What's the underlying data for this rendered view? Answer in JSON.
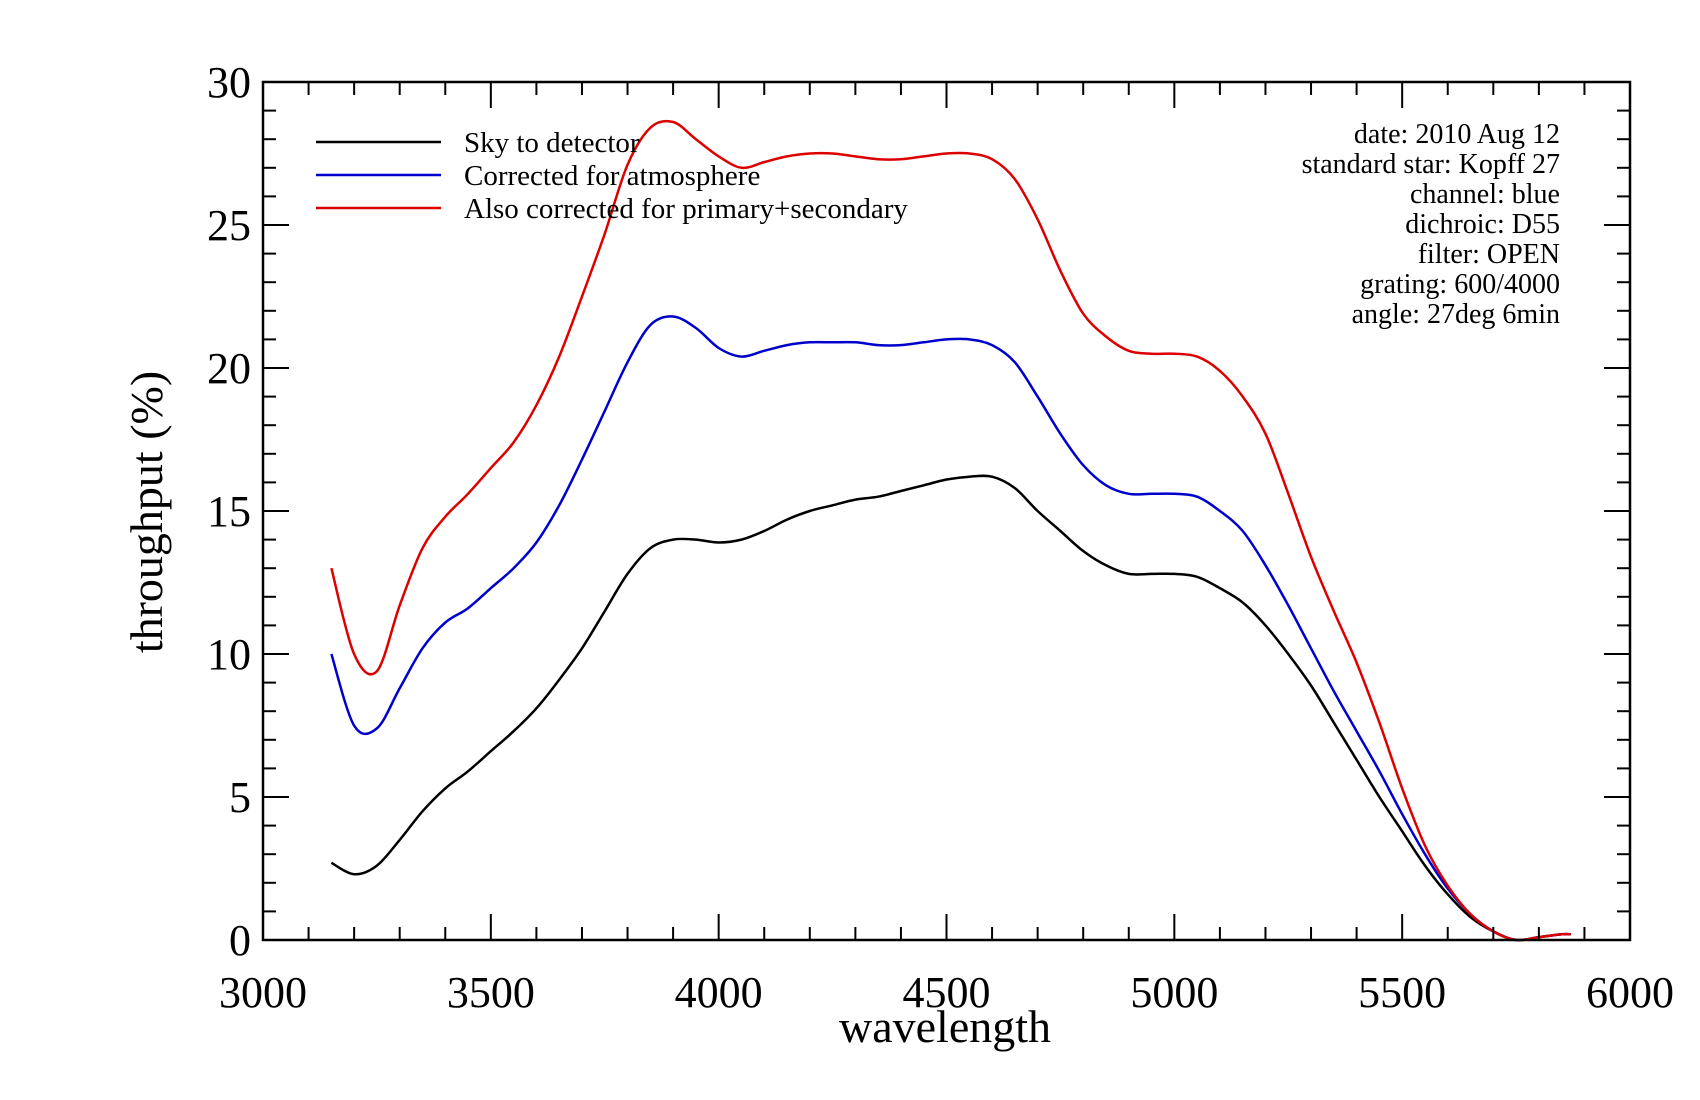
{
  "chart_data": {
    "type": "line",
    "xlabel": "wavelength",
    "ylabel": "throughput (%)",
    "xlim": [
      3000,
      6000
    ],
    "ylim": [
      0,
      30
    ],
    "x_ticks": [
      3000,
      3500,
      4000,
      4500,
      5000,
      5500,
      6000
    ],
    "y_ticks": [
      0,
      5,
      10,
      15,
      20,
      25,
      30
    ],
    "grid": false,
    "legend_position": "top-left",
    "legend": [
      {
        "label": "Sky to detector",
        "color": "#000000"
      },
      {
        "label": "Corrected for atmosphere",
        "color": "#0000cc"
      },
      {
        "label": "Also corrected for primary+secondary",
        "color": "#dd0000"
      }
    ],
    "annotations": [
      "date: 2010 Aug 12",
      "standard star: Kopff 27",
      "channel: blue",
      "dichroic: D55",
      "filter: OPEN",
      "grating: 600/4000",
      "angle: 27deg 6min"
    ],
    "x": [
      3150,
      3200,
      3250,
      3300,
      3350,
      3400,
      3450,
      3500,
      3550,
      3600,
      3650,
      3700,
      3750,
      3800,
      3850,
      3900,
      3950,
      4000,
      4050,
      4100,
      4150,
      4200,
      4250,
      4300,
      4350,
      4400,
      4450,
      4500,
      4550,
      4600,
      4650,
      4700,
      4750,
      4800,
      4850,
      4900,
      4950,
      5000,
      5050,
      5100,
      5150,
      5200,
      5250,
      5300,
      5350,
      5400,
      5450,
      5500,
      5550,
      5600,
      5650,
      5700,
      5750,
      5800,
      5850,
      5870
    ],
    "series": [
      {
        "name": "Sky to detector",
        "color": "#000000",
        "values": [
          2.7,
          2.3,
          2.6,
          3.5,
          4.5,
          5.3,
          5.9,
          6.6,
          7.3,
          8.1,
          9.1,
          10.2,
          11.5,
          12.8,
          13.7,
          14.0,
          14.0,
          13.9,
          14.0,
          14.3,
          14.7,
          15.0,
          15.2,
          15.4,
          15.5,
          15.7,
          15.9,
          16.1,
          16.2,
          16.2,
          15.8,
          15.0,
          14.3,
          13.6,
          13.1,
          12.8,
          12.8,
          12.8,
          12.7,
          12.3,
          11.8,
          11.0,
          10.0,
          8.9,
          7.6,
          6.3,
          5.0,
          3.8,
          2.6,
          1.6,
          0.8,
          0.3,
          0.0,
          0.1,
          0.2,
          0.2
        ]
      },
      {
        "name": "Corrected for atmosphere",
        "color": "#0000cc",
        "values": [
          10.0,
          7.5,
          7.4,
          8.8,
          10.2,
          11.1,
          11.6,
          12.3,
          13.0,
          13.9,
          15.2,
          16.8,
          18.5,
          20.2,
          21.5,
          21.8,
          21.4,
          20.7,
          20.4,
          20.6,
          20.8,
          20.9,
          20.9,
          20.9,
          20.8,
          20.8,
          20.9,
          21.0,
          21.0,
          20.8,
          20.2,
          19.0,
          17.7,
          16.6,
          15.9,
          15.6,
          15.6,
          15.6,
          15.5,
          15.0,
          14.3,
          13.1,
          11.7,
          10.2,
          8.7,
          7.3,
          5.9,
          4.4,
          3.0,
          1.8,
          0.9,
          0.3,
          0.0,
          0.1,
          0.2,
          0.2
        ]
      },
      {
        "name": "Also corrected for primary+secondary",
        "color": "#dd0000",
        "values": [
          13.0,
          10.0,
          9.4,
          11.7,
          13.7,
          14.8,
          15.6,
          16.5,
          17.4,
          18.7,
          20.4,
          22.5,
          24.7,
          27.1,
          28.4,
          28.6,
          28.0,
          27.4,
          27.0,
          27.2,
          27.4,
          27.5,
          27.5,
          27.4,
          27.3,
          27.3,
          27.4,
          27.5,
          27.5,
          27.3,
          26.6,
          25.2,
          23.4,
          21.9,
          21.1,
          20.6,
          20.5,
          20.5,
          20.4,
          19.9,
          19.0,
          17.7,
          15.6,
          13.4,
          11.5,
          9.7,
          7.6,
          5.3,
          3.3,
          1.9,
          0.9,
          0.3,
          0.0,
          0.1,
          0.2,
          0.2
        ]
      }
    ]
  }
}
